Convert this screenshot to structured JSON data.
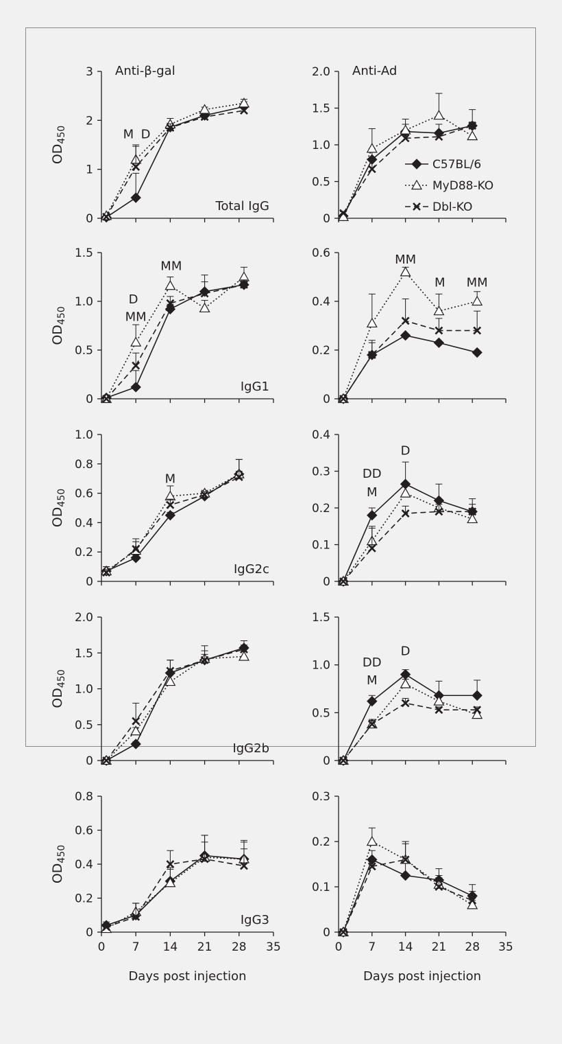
{
  "figure": {
    "x_axis_label": "Days post injection",
    "y_axis_label": "OD",
    "y_axis_label_sub": "450",
    "column_titles": [
      "Anti-β-gal",
      "Anti-Ad"
    ],
    "legend": [
      {
        "name": "C57BL/6",
        "marker": "diamond",
        "line": "solid"
      },
      {
        "name": "MyD88-KO",
        "marker": "triangle",
        "line": "dotted"
      },
      {
        "name": "Dbl-KO",
        "marker": "cross",
        "line": "dashed"
      }
    ],
    "colors": {
      "ink": "#231f20",
      "background": "#f1f1f1",
      "frame": "#8a8a8a",
      "marker_fill": "#ffffff"
    }
  },
  "chart_data": [
    {
      "type": "line",
      "title": "Anti-β-gal",
      "panel_label": "Total IgG",
      "xlabel": "",
      "ylabel": "OD450",
      "xlim": [
        0,
        35
      ],
      "ylim": [
        0,
        3
      ],
      "xticks": [
        0,
        7,
        14,
        21,
        28,
        35
      ],
      "xtick_labels": [],
      "yticks": [
        0,
        1,
        2,
        3
      ],
      "ytick_labels": [
        "0",
        "1",
        "2",
        "3"
      ],
      "series": [
        {
          "name": "C57BL/6",
          "x": [
            1,
            7,
            14,
            21,
            29
          ],
          "y": [
            0.02,
            0.42,
            1.86,
            2.1,
            2.28
          ],
          "err": [
            0,
            0.5,
            0.08,
            0.08,
            0.1
          ]
        },
        {
          "name": "MyD88-KO",
          "x": [
            1,
            7,
            14,
            21,
            29
          ],
          "y": [
            0.05,
            1.2,
            1.92,
            2.22,
            2.35
          ],
          "err": [
            0.04,
            0.3,
            0.12,
            0.05,
            0.08
          ]
        },
        {
          "name": "Dbl-KO",
          "x": [
            1,
            7,
            14,
            21,
            29
          ],
          "y": [
            0.03,
            1.05,
            1.85,
            2.07,
            2.2
          ],
          "err": [
            0.03,
            0.42,
            0.08,
            0.05,
            0.05
          ]
        }
      ],
      "annotations": [
        {
          "text": "M",
          "x": 5.5,
          "y": 1.63
        },
        {
          "text": "D",
          "x": 9.0,
          "y": 1.63
        }
      ]
    },
    {
      "type": "line",
      "title": "Anti-Ad",
      "panel_label": "",
      "xlabel": "",
      "ylabel": "",
      "xlim": [
        0,
        35
      ],
      "ylim": [
        0,
        2
      ],
      "xticks": [
        0,
        7,
        14,
        21,
        28,
        35
      ],
      "xtick_labels": [],
      "yticks": [
        0,
        0.5,
        1.0,
        1.5,
        2.0
      ],
      "ytick_labels": [
        "0",
        "0.5",
        "1.0",
        "1.5",
        "2.0"
      ],
      "series": [
        {
          "name": "C57BL/6",
          "x": [
            1,
            7,
            14,
            21,
            28
          ],
          "y": [
            0.03,
            0.8,
            1.18,
            1.16,
            1.26
          ],
          "err": [
            0,
            0.15,
            0.1,
            0.12,
            0.22
          ]
        },
        {
          "name": "MyD88-KO",
          "x": [
            1,
            7,
            14,
            21,
            28
          ],
          "y": [
            0.02,
            0.95,
            1.2,
            1.4,
            1.12
          ],
          "err": [
            0.02,
            0.27,
            0.15,
            0.3,
            0
          ]
        },
        {
          "name": "Dbl-KO",
          "x": [
            1,
            7,
            14,
            21,
            28
          ],
          "y": [
            0.07,
            0.67,
            1.09,
            1.11,
            1.26
          ],
          "err": [
            0.02,
            0.12,
            0.05,
            0.05,
            0.05
          ]
        }
      ],
      "annotations": []
    },
    {
      "type": "line",
      "title": "",
      "panel_label": "IgG1",
      "xlabel": "",
      "ylabel": "OD450",
      "xlim": [
        0,
        35
      ],
      "ylim": [
        0,
        1.5
      ],
      "xticks": [
        0,
        7,
        14,
        21,
        28,
        35
      ],
      "xtick_labels": [],
      "yticks": [
        0,
        0.5,
        1.0,
        1.5
      ],
      "ytick_labels": [
        "0",
        "0.5",
        "1.0",
        "1.5"
      ],
      "series": [
        {
          "name": "C57BL/6",
          "x": [
            1,
            7,
            14,
            21,
            29
          ],
          "y": [
            0.01,
            0.12,
            0.92,
            1.1,
            1.17
          ],
          "err": [
            0,
            0.17,
            0.05,
            0.17,
            0.05
          ]
        },
        {
          "name": "MyD88-KO",
          "x": [
            1,
            7,
            14,
            21,
            29
          ],
          "y": [
            0.0,
            0.58,
            1.16,
            0.93,
            1.25
          ],
          "err": [
            0,
            0.18,
            0.09,
            0.08,
            0.1
          ]
        },
        {
          "name": "Dbl-KO",
          "x": [
            1,
            7,
            14,
            21,
            29
          ],
          "y": [
            0.0,
            0.34,
            0.98,
            1.08,
            1.17
          ],
          "err": [
            0,
            0.13,
            0.07,
            0.12,
            0.05
          ]
        }
      ],
      "annotations": [
        {
          "text": "D",
          "x": 6.5,
          "y": 0.98
        },
        {
          "text": "MM",
          "x": 7.0,
          "y": 0.8
        },
        {
          "text": "MM",
          "x": 14.2,
          "y": 1.32
        }
      ]
    },
    {
      "type": "line",
      "title": "",
      "panel_label": "",
      "xlabel": "",
      "ylabel": "",
      "xlim": [
        0,
        35
      ],
      "ylim": [
        0,
        0.6
      ],
      "xticks": [
        0,
        7,
        14,
        21,
        28,
        35
      ],
      "xtick_labels": [],
      "yticks": [
        0,
        0.2,
        0.4,
        0.6
      ],
      "ytick_labels": [
        "0",
        "0.2",
        "0.4",
        "0.6"
      ],
      "series": [
        {
          "name": "C57BL/6",
          "x": [
            1,
            7,
            14,
            21,
            29
          ],
          "y": [
            0.0,
            0.18,
            0.26,
            0.23,
            0.19
          ],
          "err": [
            0,
            0.06,
            0,
            0,
            0
          ]
        },
        {
          "name": "MyD88-KO",
          "x": [
            1,
            7,
            14,
            21,
            29
          ],
          "y": [
            0.0,
            0.31,
            0.52,
            0.36,
            0.4
          ],
          "err": [
            0,
            0.12,
            0.02,
            0.07,
            0.04
          ]
        },
        {
          "name": "Dbl-KO",
          "x": [
            1,
            7,
            14,
            21,
            29
          ],
          "y": [
            0.0,
            0.18,
            0.32,
            0.28,
            0.28
          ],
          "err": [
            0,
            0.05,
            0.09,
            0.05,
            0.08
          ]
        }
      ],
      "annotations": [
        {
          "text": "MM",
          "x": 14.0,
          "y": 0.555
        },
        {
          "text": "M",
          "x": 21.2,
          "y": 0.46
        },
        {
          "text": "MM",
          "x": 29.0,
          "y": 0.46
        }
      ]
    },
    {
      "type": "line",
      "title": "",
      "panel_label": "IgG2c",
      "xlabel": "",
      "ylabel": "OD450",
      "xlim": [
        0,
        35
      ],
      "ylim": [
        0,
        1
      ],
      "xticks": [
        0,
        7,
        14,
        21,
        28,
        35
      ],
      "xtick_labels": [],
      "yticks": [
        0,
        0.2,
        0.4,
        0.6,
        0.8,
        1.0
      ],
      "ytick_labels": [
        "0",
        "0.2",
        "0.4",
        "0.6",
        "0.8",
        "1.0"
      ],
      "series": [
        {
          "name": "C57BL/6",
          "x": [
            1,
            7,
            14,
            21,
            28
          ],
          "y": [
            0.07,
            0.16,
            0.45,
            0.58,
            0.73
          ],
          "err": [
            0.03,
            0.02,
            0.02,
            0.02,
            0.1
          ]
        },
        {
          "name": "MyD88-KO",
          "x": [
            1,
            7,
            14,
            21,
            28
          ],
          "y": [
            0.07,
            0.21,
            0.58,
            0.6,
            0.73
          ],
          "err": [
            0.03,
            0.08,
            0.07,
            0.02,
            0.1
          ]
        },
        {
          "name": "Dbl-KO",
          "x": [
            1,
            7,
            14,
            21,
            28
          ],
          "y": [
            0.06,
            0.22,
            0.52,
            0.59,
            0.71
          ],
          "err": [
            0.02,
            0.05,
            0.04,
            0.02,
            0.04
          ]
        }
      ],
      "annotations": [
        {
          "text": "M",
          "x": 14.0,
          "y": 0.67
        }
      ]
    },
    {
      "type": "line",
      "title": "",
      "panel_label": "",
      "xlabel": "",
      "ylabel": "",
      "xlim": [
        0,
        35
      ],
      "ylim": [
        0,
        0.4
      ],
      "xticks": [
        0,
        7,
        14,
        21,
        28,
        35
      ],
      "xtick_labels": [],
      "yticks": [
        0,
        0.1,
        0.2,
        0.3,
        0.4
      ],
      "ytick_labels": [
        "0",
        "0.1",
        "0.2",
        "0.3",
        "0.4"
      ],
      "series": [
        {
          "name": "C57BL/6",
          "x": [
            1,
            7,
            14,
            21,
            28
          ],
          "y": [
            0.0,
            0.18,
            0.265,
            0.22,
            0.19
          ],
          "err": [
            0,
            0.02,
            0.06,
            0.045,
            0.035
          ]
        },
        {
          "name": "MyD88-KO",
          "x": [
            1,
            7,
            14,
            21,
            28
          ],
          "y": [
            0.0,
            0.11,
            0.24,
            0.2,
            0.17
          ],
          "err": [
            0,
            0.04,
            0.02,
            0.02,
            0.02
          ]
        },
        {
          "name": "Dbl-KO",
          "x": [
            1,
            7,
            14,
            21,
            28
          ],
          "y": [
            0.0,
            0.09,
            0.185,
            0.19,
            0.19
          ],
          "err": [
            0,
            0.055,
            0.02,
            0.02,
            0.02
          ]
        }
      ],
      "annotations": [
        {
          "text": "DD",
          "x": 7.0,
          "y": 0.282
        },
        {
          "text": "M",
          "x": 7.0,
          "y": 0.232
        },
        {
          "text": "D",
          "x": 14.0,
          "y": 0.345
        }
      ]
    },
    {
      "type": "line",
      "title": "",
      "panel_label": "IgG2b",
      "xlabel": "",
      "ylabel": "OD450",
      "xlim": [
        0,
        35
      ],
      "ylim": [
        0,
        2
      ],
      "xticks": [
        0,
        7,
        14,
        21,
        28,
        35
      ],
      "xtick_labels": [],
      "yticks": [
        0,
        0.5,
        1.0,
        1.5,
        2.0
      ],
      "ytick_labels": [
        "0",
        "0.5",
        "1.0",
        "1.5",
        "2.0"
      ],
      "series": [
        {
          "name": "C57BL/6",
          "x": [
            1,
            7,
            14,
            21,
            29
          ],
          "y": [
            0.0,
            0.23,
            1.22,
            1.4,
            1.57
          ],
          "err": [
            0,
            0.03,
            0.18,
            0.13,
            0.1
          ]
        },
        {
          "name": "MyD88-KO",
          "x": [
            1,
            7,
            14,
            21,
            29
          ],
          "y": [
            0.0,
            0.41,
            1.1,
            1.42,
            1.45
          ],
          "err": [
            0,
            0.05,
            0.14,
            0.18,
            0.1
          ]
        },
        {
          "name": "Dbl-KO",
          "x": [
            1,
            7,
            14,
            21,
            29
          ],
          "y": [
            0.0,
            0.55,
            1.25,
            1.4,
            1.55
          ],
          "err": [
            0,
            0.25,
            0.15,
            0.08,
            0.06
          ]
        }
      ],
      "annotations": []
    },
    {
      "type": "line",
      "title": "",
      "panel_label": "",
      "xlabel": "",
      "ylabel": "",
      "xlim": [
        0,
        35
      ],
      "ylim": [
        0,
        1.5
      ],
      "xticks": [
        0,
        7,
        14,
        21,
        28,
        35
      ],
      "xtick_labels": [],
      "yticks": [
        0,
        0.5,
        1.0,
        1.5
      ],
      "ytick_labels": [
        "0",
        "0.5",
        "1.0",
        "1.5"
      ],
      "series": [
        {
          "name": "C57BL/6",
          "x": [
            1,
            7,
            14,
            21,
            29
          ],
          "y": [
            0.0,
            0.62,
            0.9,
            0.68,
            0.68
          ],
          "err": [
            0,
            0.06,
            0.05,
            0.15,
            0.16
          ]
        },
        {
          "name": "MyD88-KO",
          "x": [
            1,
            7,
            14,
            21,
            29
          ],
          "y": [
            0.0,
            0.38,
            0.8,
            0.62,
            0.48
          ],
          "err": [
            0,
            0.05,
            0.05,
            0.05,
            0.03
          ]
        },
        {
          "name": "Dbl-KO",
          "x": [
            1,
            7,
            14,
            21,
            29
          ],
          "y": [
            0.0,
            0.38,
            0.6,
            0.53,
            0.53
          ],
          "err": [
            0,
            0.04,
            0.05,
            0.03,
            0.03
          ]
        }
      ],
      "annotations": [
        {
          "text": "DD",
          "x": 7.0,
          "y": 0.985
        },
        {
          "text": "M",
          "x": 7.0,
          "y": 0.795
        },
        {
          "text": "D",
          "x": 14.0,
          "y": 1.1
        }
      ]
    },
    {
      "type": "line",
      "title": "",
      "panel_label": "IgG3",
      "xlabel": "Days post injection",
      "ylabel": "OD450",
      "xlim": [
        0,
        35
      ],
      "ylim": [
        0,
        0.8
      ],
      "xticks": [
        0,
        7,
        14,
        21,
        28,
        35
      ],
      "xtick_labels": [
        "0",
        "7",
        "14",
        "21",
        "28",
        "35"
      ],
      "yticks": [
        0,
        0.2,
        0.4,
        0.6,
        0.8
      ],
      "ytick_labels": [
        "0",
        "0.2",
        "0.4",
        "0.6",
        "0.8"
      ],
      "series": [
        {
          "name": "C57BL/6",
          "x": [
            1,
            7,
            14,
            21,
            29
          ],
          "y": [
            0.04,
            0.1,
            0.3,
            0.45,
            0.43
          ],
          "err": [
            0.02,
            0.07,
            0.08,
            0.12,
            0.11
          ]
        },
        {
          "name": "MyD88-KO",
          "x": [
            1,
            7,
            14,
            21,
            29
          ],
          "y": [
            0.02,
            0.12,
            0.29,
            0.44,
            0.43
          ],
          "err": [
            0.01,
            0.05,
            0.08,
            0.13,
            0.1
          ]
        },
        {
          "name": "Dbl-KO",
          "x": [
            1,
            7,
            14,
            21,
            29
          ],
          "y": [
            0.03,
            0.09,
            0.4,
            0.43,
            0.39
          ],
          "err": [
            0.01,
            0.08,
            0.08,
            0.1,
            0.1
          ]
        }
      ],
      "annotations": []
    },
    {
      "type": "line",
      "title": "",
      "panel_label": "",
      "xlabel": "Days post injection",
      "ylabel": "",
      "xlim": [
        0,
        35
      ],
      "ylim": [
        0,
        0.3
      ],
      "xticks": [
        0,
        7,
        14,
        21,
        28,
        35
      ],
      "xtick_labels": [
        "0",
        "7",
        "14",
        "21",
        "28",
        "35"
      ],
      "yticks": [
        0,
        0.1,
        0.2,
        0.3
      ],
      "ytick_labels": [
        "0",
        "0.1",
        "0.2",
        "0.3"
      ],
      "series": [
        {
          "name": "C57BL/6",
          "x": [
            1,
            7,
            14,
            21,
            28
          ],
          "y": [
            0.0,
            0.16,
            0.125,
            0.115,
            0.08
          ],
          "err": [
            0,
            0.02,
            0.07,
            0.025,
            0.025
          ]
        },
        {
          "name": "MyD88-KO",
          "x": [
            1,
            7,
            14,
            21,
            28
          ],
          "y": [
            0.0,
            0.2,
            0.16,
            0.105,
            0.06
          ],
          "err": [
            0,
            0.03,
            0.04,
            0.02,
            0.01
          ]
        },
        {
          "name": "Dbl-KO",
          "x": [
            1,
            7,
            14,
            21,
            28
          ],
          "y": [
            0.0,
            0.145,
            0.16,
            0.1,
            0.07
          ],
          "err": [
            0,
            0.01,
            0.04,
            0.02,
            0.02
          ]
        }
      ],
      "annotations": []
    }
  ]
}
